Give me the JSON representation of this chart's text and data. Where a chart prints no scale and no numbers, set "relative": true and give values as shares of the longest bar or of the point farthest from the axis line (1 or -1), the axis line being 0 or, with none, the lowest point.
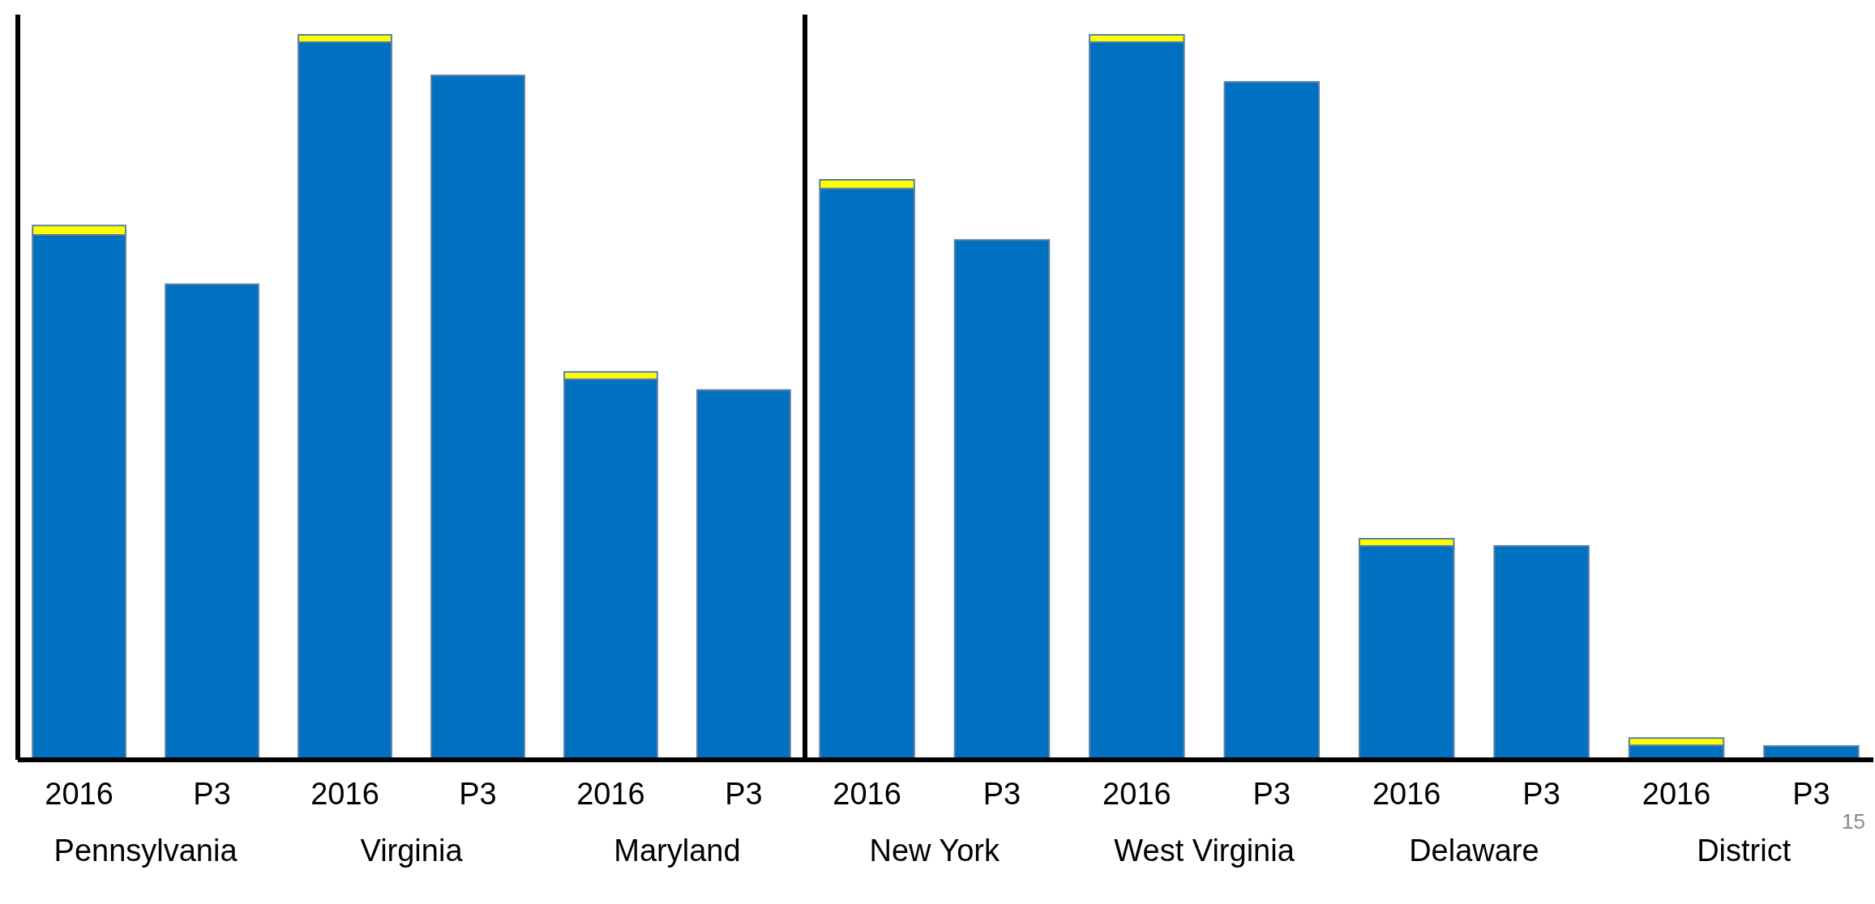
{
  "chart_data": [
    {
      "type": "bar",
      "relative": true,
      "stacked": true,
      "categories": [
        "2016",
        "P3",
        "2016",
        "P3",
        "2016",
        "P3"
      ],
      "series": [
        {
          "color": "#0070c0",
          "values": [
            0.724,
            0.656,
            0.99,
            0.944,
            0.525,
            0.51
          ]
        },
        {
          "color": "#ffff00",
          "values": [
            0.013,
            null,
            0.01,
            null,
            0.01,
            null
          ]
        }
      ],
      "annotations": [
        "Pennsylvania",
        "Virginia",
        "Maryland"
      ]
    },
    {
      "type": "bar",
      "relative": true,
      "stacked": true,
      "categories": [
        "2016",
        "P3",
        "2016",
        "P3",
        "2016",
        "P3",
        "2016",
        "P3"
      ],
      "series": [
        {
          "color": "#0070c0",
          "values": [
            0.788,
            0.717,
            0.99,
            0.935,
            0.295,
            0.295,
            0.02,
            0.019
          ]
        },
        {
          "color": "#ffff00",
          "values": [
            0.012,
            null,
            0.01,
            null,
            0.01,
            null,
            0.01,
            null
          ]
        }
      ],
      "annotations": [
        "New York",
        "West Virginia",
        "Delaware",
        "District",
        "15"
      ]
    }
  ]
}
